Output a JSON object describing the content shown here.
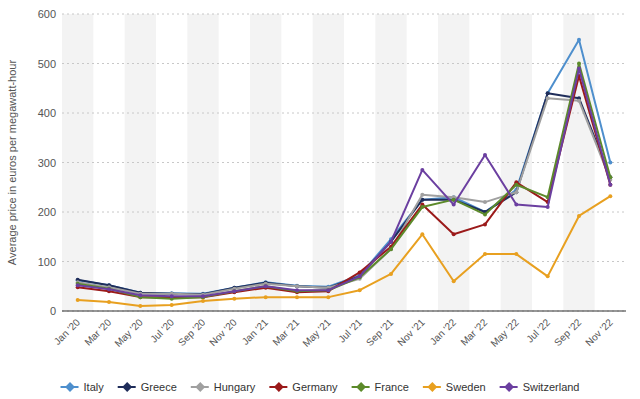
{
  "chart_data": {
    "type": "line",
    "ylabel": "Average price in euros per megawatt-hour",
    "categories": [
      "Jan '20",
      "Mar '20",
      "May '20",
      "Jul '20",
      "Sep '20",
      "Nov '20",
      "Jan '21",
      "Mar '21",
      "May '21",
      "Jul '21",
      "Sep '21",
      "Nov '21",
      "Jan '22",
      "Mar '22",
      "May '22",
      "Jul '22",
      "Sep '22",
      "Nov '22"
    ],
    "series": [
      {
        "name": "Italy",
        "color": "#4e8fcd",
        "values": [
          62,
          52,
          37,
          36,
          35,
          47,
          58,
          51,
          49,
          72,
          145,
          225,
          230,
          200,
          245,
          440,
          548,
          300
        ]
      },
      {
        "name": "Greece",
        "color": "#1f2d5a",
        "values": [
          63,
          52,
          37,
          35,
          34,
          47,
          57,
          50,
          47,
          70,
          140,
          225,
          225,
          200,
          240,
          440,
          430,
          270
        ]
      },
      {
        "name": "Hungary",
        "color": "#a0a0a0",
        "values": [
          58,
          48,
          35,
          35,
          33,
          45,
          55,
          50,
          47,
          65,
          125,
          235,
          230,
          220,
          240,
          430,
          425,
          265
        ]
      },
      {
        "name": "Germany",
        "color": "#9b1a1a",
        "values": [
          48,
          40,
          28,
          28,
          28,
          38,
          47,
          38,
          40,
          78,
          130,
          215,
          155,
          175,
          260,
          220,
          475,
          255
        ]
      },
      {
        "name": "France",
        "color": "#5c8a2a",
        "values": [
          55,
          45,
          28,
          25,
          28,
          40,
          50,
          40,
          42,
          68,
          125,
          210,
          225,
          195,
          255,
          230,
          500,
          270
        ]
      },
      {
        "name": "Sweden",
        "color": "#e8a020",
        "values": [
          22,
          18,
          10,
          12,
          20,
          25,
          28,
          28,
          28,
          42,
          75,
          155,
          60,
          115,
          115,
          70,
          192,
          232
        ]
      },
      {
        "name": "Switzerland",
        "color": "#6b3fa0",
        "values": [
          52,
          44,
          32,
          30,
          30,
          40,
          50,
          42,
          42,
          70,
          140,
          285,
          215,
          315,
          215,
          210,
          490,
          255
        ]
      }
    ],
    "ylim": [
      0,
      600
    ],
    "yticks": [
      0,
      100,
      200,
      300,
      400,
      500,
      600
    ],
    "grid": true,
    "legend": "bottom",
    "marker": "circle"
  }
}
